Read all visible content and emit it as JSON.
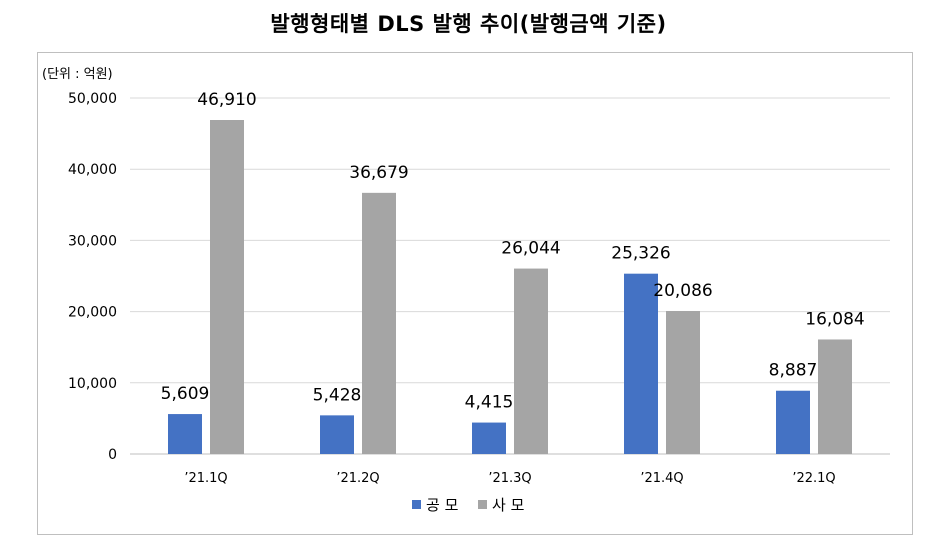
{
  "chart_data": {
    "type": "bar",
    "title": "발행형태별 DLS 발행 추이(발행금액 기준)",
    "unit_label": "(단위 : 억원)",
    "categories": [
      "’21.1Q",
      "’21.2Q",
      "’21.3Q",
      "’21.4Q",
      "’22.1Q"
    ],
    "series": [
      {
        "name": "공 모",
        "color": "#4472c4",
        "values": [
          5609,
          5428,
          4415,
          25326,
          8887
        ]
      },
      {
        "name": "사 모",
        "color": "#a5a5a5",
        "values": [
          46910,
          36679,
          26044,
          20086,
          16084
        ]
      }
    ],
    "ylim": [
      0,
      50000
    ],
    "yticks": [
      0,
      10000,
      20000,
      30000,
      40000,
      50000
    ],
    "ytick_labels": [
      "0",
      "10,000",
      "20,000",
      "30,000",
      "40,000",
      "50,000"
    ],
    "data_labels": [
      [
        "5,609",
        "5,428",
        "4,415",
        "25,326",
        "8,887"
      ],
      [
        "46,910",
        "36,679",
        "26,044",
        "20,086",
        "16,084"
      ]
    ],
    "grid": true,
    "legend_position": "bottom-center",
    "xlabel": "",
    "ylabel": ""
  }
}
